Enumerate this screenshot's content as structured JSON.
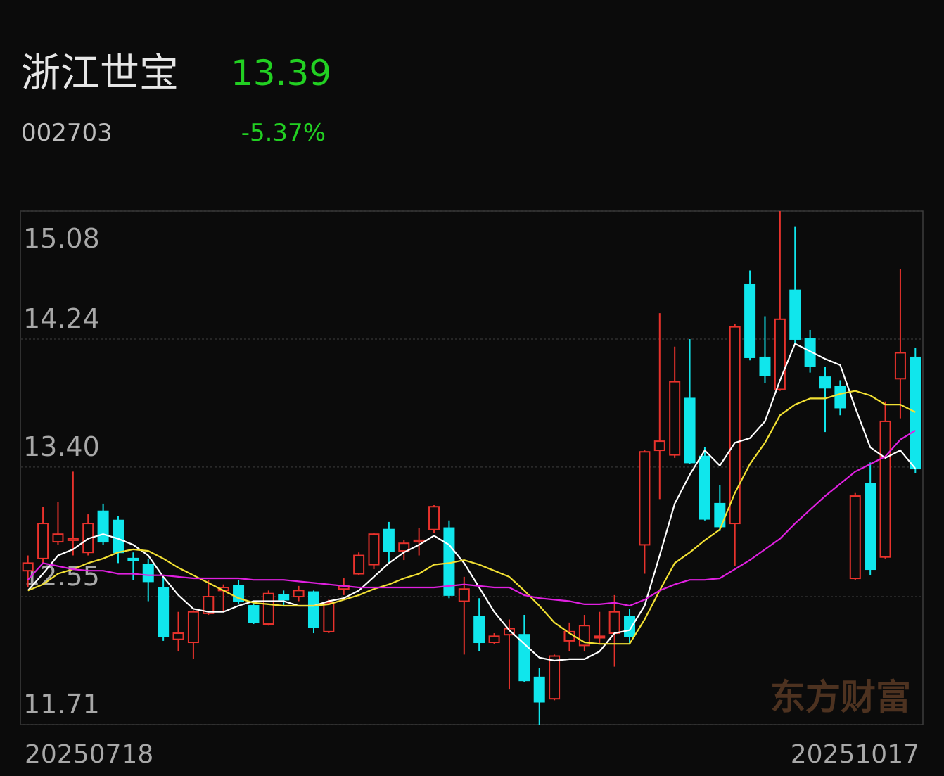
{
  "header": {
    "name": "浙江世宝",
    "price": "13.39",
    "code": "002703",
    "change": "-5.37%"
  },
  "chart_data": {
    "type": "candlestick",
    "categories": [
      "20250718",
      null,
      null,
      null,
      null,
      null,
      null,
      null,
      null,
      null,
      null,
      null,
      null,
      null,
      null,
      null,
      null,
      null,
      null,
      null,
      null,
      null,
      null,
      null,
      null,
      null,
      null,
      null,
      null,
      null,
      null,
      null,
      null,
      null,
      null,
      null,
      null,
      null,
      null,
      null,
      null,
      null,
      null,
      null,
      null,
      null,
      null,
      null,
      null,
      null,
      null,
      null,
      null,
      null,
      null,
      null,
      null,
      null,
      null,
      "20251017"
    ],
    "open": [
      12.72,
      12.8,
      12.91,
      12.92,
      12.84,
      13.11,
      13.05,
      12.8,
      12.76,
      12.61,
      12.27,
      12.25,
      12.44,
      12.59,
      12.62,
      12.49,
      12.37,
      12.56,
      12.55,
      12.58,
      12.32,
      12.6,
      12.7,
      12.76,
      12.99,
      12.85,
      12.91,
      12.99,
      13.0,
      12.52,
      12.42,
      12.25,
      12.3,
      12.3,
      12.02,
      11.88,
      12.26,
      12.23,
      12.28,
      12.31,
      12.42,
      12.89,
      13.51,
      13.48,
      13.85,
      13.47,
      13.16,
      13.03,
      14.6,
      14.12,
      13.91,
      14.56,
      14.24,
      13.99,
      13.93,
      12.67,
      13.29,
      12.81,
      13.98,
      14.12
    ],
    "high": [
      12.82,
      13.14,
      13.17,
      13.37,
      13.09,
      13.16,
      13.08,
      12.84,
      12.8,
      12.68,
      12.45,
      12.46,
      12.66,
      12.63,
      12.66,
      12.52,
      12.59,
      12.59,
      12.62,
      12.59,
      12.53,
      12.67,
      12.84,
      12.97,
      13.04,
      12.92,
      13.0,
      13.15,
      13.05,
      12.68,
      12.54,
      12.31,
      12.4,
      12.43,
      12.08,
      12.17,
      12.38,
      12.43,
      12.45,
      12.56,
      12.47,
      13.51,
      14.41,
      14.19,
      14.24,
      13.53,
      13.28,
      14.34,
      14.69,
      14.39,
      15.08,
      14.98,
      14.3,
      14.06,
      13.97,
      13.23,
      13.43,
      13.83,
      14.7,
      14.18
    ],
    "low": [
      12.61,
      12.77,
      12.89,
      12.82,
      12.82,
      12.89,
      12.77,
      12.66,
      12.52,
      12.26,
      12.19,
      12.14,
      12.43,
      12.45,
      12.5,
      12.37,
      12.36,
      12.49,
      12.52,
      12.31,
      12.31,
      12.56,
      12.69,
      12.73,
      12.77,
      12.79,
      12.82,
      12.97,
      12.54,
      12.17,
      12.19,
      12.24,
      11.94,
      11.99,
      11.71,
      11.87,
      12.19,
      12.19,
      12.24,
      12.09,
      12.24,
      12.7,
      13.19,
      13.46,
      13.42,
      13.05,
      12.98,
      12.75,
      14.1,
      13.95,
      13.9,
      14.2,
      14.02,
      13.63,
      13.74,
      12.66,
      12.69,
      12.8,
      13.72,
      13.36
    ],
    "close": [
      12.77,
      13.03,
      12.96,
      12.93,
      13.03,
      12.91,
      12.84,
      12.79,
      12.65,
      12.29,
      12.31,
      12.45,
      12.55,
      12.61,
      12.52,
      12.38,
      12.57,
      12.53,
      12.59,
      12.35,
      12.51,
      12.62,
      12.82,
      12.96,
      12.85,
      12.9,
      12.92,
      13.14,
      12.56,
      12.6,
      12.25,
      12.29,
      12.34,
      12.0,
      11.86,
      12.16,
      12.32,
      12.36,
      12.29,
      12.45,
      12.29,
      13.5,
      13.57,
      13.96,
      13.43,
      13.06,
      13.01,
      14.32,
      14.12,
      14.0,
      14.37,
      14.24,
      14.06,
      13.92,
      13.79,
      13.21,
      12.73,
      13.7,
      14.15,
      13.39
    ],
    "up_color": "#e8322c",
    "down_color": "#10e6ec",
    "lines": [
      {
        "color": "#ffffff",
        "values": [
          12.59,
          12.7,
          12.82,
          12.86,
          12.93,
          12.96,
          12.93,
          12.89,
          12.82,
          12.68,
          12.56,
          12.47,
          12.45,
          12.45,
          12.49,
          12.52,
          12.52,
          12.52,
          12.49,
          12.49,
          12.52,
          12.54,
          12.59,
          12.68,
          12.77,
          12.84,
          12.89,
          12.95,
          12.89,
          12.77,
          12.61,
          12.45,
          12.33,
          12.24,
          12.15,
          12.13,
          12.14,
          12.14,
          12.19,
          12.31,
          12.33,
          12.49,
          12.82,
          13.16,
          13.35,
          13.51,
          13.41,
          13.56,
          13.59,
          13.7,
          13.97,
          14.21,
          14.16,
          14.11,
          14.07,
          13.79,
          13.53,
          13.46,
          13.51,
          13.39
        ]
      },
      {
        "color": "#f2e033",
        "values": [
          12.59,
          12.63,
          12.7,
          12.73,
          12.77,
          12.8,
          12.84,
          12.86,
          12.85,
          12.8,
          12.74,
          12.69,
          12.64,
          12.59,
          12.54,
          12.51,
          12.5,
          12.49,
          12.49,
          12.49,
          12.5,
          12.53,
          12.56,
          12.6,
          12.63,
          12.67,
          12.7,
          12.76,
          12.77,
          12.79,
          12.76,
          12.72,
          12.68,
          12.59,
          12.49,
          12.38,
          12.31,
          12.25,
          12.24,
          12.24,
          12.24,
          12.4,
          12.59,
          12.77,
          12.84,
          12.92,
          12.99,
          13.23,
          13.42,
          13.56,
          13.74,
          13.81,
          13.85,
          13.85,
          13.88,
          13.9,
          13.87,
          13.81,
          13.81,
          13.76
        ]
      },
      {
        "color": "#e020e0",
        "values": [
          12.66,
          12.77,
          12.75,
          12.73,
          12.72,
          12.72,
          12.7,
          12.7,
          12.69,
          12.69,
          12.68,
          12.67,
          12.67,
          12.67,
          12.67,
          12.66,
          12.66,
          12.66,
          12.65,
          12.64,
          12.63,
          12.62,
          12.61,
          12.61,
          12.61,
          12.61,
          12.61,
          12.61,
          12.62,
          12.63,
          12.62,
          12.61,
          12.61,
          12.56,
          12.54,
          12.53,
          12.52,
          12.5,
          12.5,
          12.51,
          12.49,
          12.53,
          12.59,
          12.63,
          12.66,
          12.66,
          12.67,
          12.73,
          12.79,
          12.86,
          12.93,
          13.03,
          13.12,
          13.21,
          13.29,
          13.37,
          13.42,
          13.47,
          13.58,
          13.64
        ]
      }
    ],
    "ylim": [
      11.71,
      15.08
    ],
    "yticks": [
      15.08,
      14.24,
      {
        "value": 13.4,
        "label": "13.40"
      },
      12.55,
      11.71
    ],
    "grid": true,
    "watermark": "东方财富"
  }
}
